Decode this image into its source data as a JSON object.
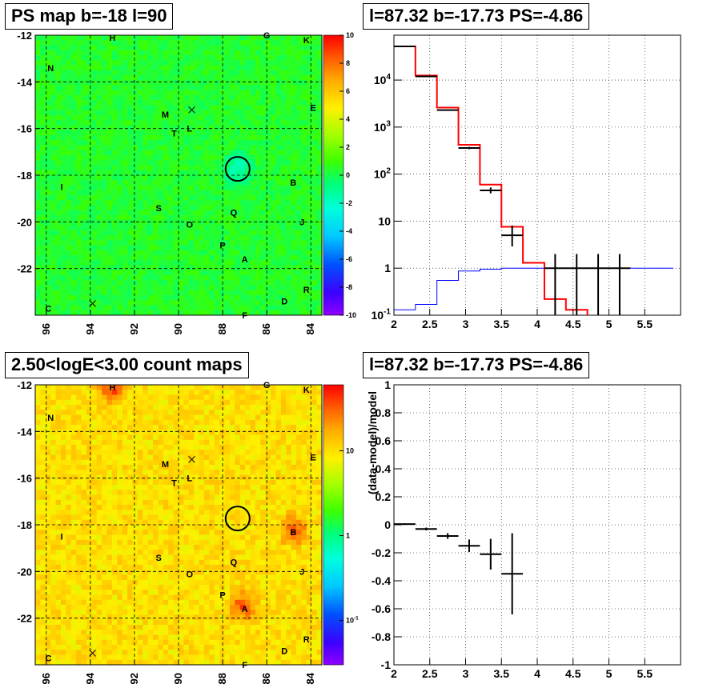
{
  "panels": {
    "ps_map_title": "PS map b=-18 l=90",
    "spectrum_title": "l=87.32 b=-17.73 PS=-4.86",
    "count_map_title": "2.50<logE<3.00 count maps",
    "residual_title": "l=87.32 b=-17.73 PS=-4.86"
  },
  "chart_data": [
    {
      "type": "heatmap",
      "title": "PS map b=-18 l=90",
      "xlabel": "",
      "ylabel": "",
      "x_ticks": [
        "96",
        "94",
        "92",
        "90",
        "88",
        "86",
        "84"
      ],
      "y_ticks": [
        "-12",
        "-14",
        "-16",
        "-18",
        "-20",
        "-22"
      ],
      "xlim": [
        96.5,
        83.5
      ],
      "ylim": [
        -24.0,
        -12.0
      ],
      "colorbar": {
        "min": -10,
        "max": 10,
        "ticks": [
          "-10",
          "-8",
          "-6",
          "-4",
          "-2",
          "0",
          "2",
          "4",
          "6",
          "8",
          "10"
        ]
      },
      "dominant_value": 0.5,
      "source_labels": [
        {
          "text": "H",
          "l": 93.0,
          "b": -12.1
        },
        {
          "text": "G",
          "l": 86.0,
          "b": -12.0
        },
        {
          "text": "K",
          "l": 84.2,
          "b": -12.2
        },
        {
          "text": "N",
          "l": 95.8,
          "b": -13.4
        },
        {
          "text": "E",
          "l": 83.9,
          "b": -15.1
        },
        {
          "text": "M",
          "l": 90.6,
          "b": -15.4
        },
        {
          "text": "L",
          "l": 89.5,
          "b": -16.0
        },
        {
          "text": "T",
          "l": 90.2,
          "b": -16.2
        },
        {
          "text": "B",
          "l": 84.8,
          "b": -18.3
        },
        {
          "text": "I",
          "l": 95.3,
          "b": -18.5
        },
        {
          "text": "S",
          "l": 90.9,
          "b": -19.4
        },
        {
          "text": "Q",
          "l": 87.5,
          "b": -19.6
        },
        {
          "text": "J",
          "l": 84.4,
          "b": -20.0
        },
        {
          "text": "O",
          "l": 89.5,
          "b": -20.1
        },
        {
          "text": "P",
          "l": 88.0,
          "b": -21.0
        },
        {
          "text": "A",
          "l": 87.0,
          "b": -21.6
        },
        {
          "text": "R",
          "l": 84.2,
          "b": -22.9
        },
        {
          "text": "D",
          "l": 85.2,
          "b": -23.4
        },
        {
          "text": "C",
          "l": 95.9,
          "b": -23.7
        },
        {
          "text": "F",
          "l": 87.0,
          "b": -24.0
        }
      ],
      "markers": [
        {
          "type": "x",
          "l": 89.4,
          "b": -15.2
        },
        {
          "type": "x",
          "l": 93.9,
          "b": -23.5
        },
        {
          "type": "circle",
          "l": 87.32,
          "b": -17.73
        }
      ]
    },
    {
      "type": "line",
      "title": "l=87.32 b=-17.73 PS=-4.86",
      "xlabel": "",
      "ylabel": "",
      "x_ticks": [
        "2",
        "2.5",
        "3",
        "3.5",
        "4",
        "4.5",
        "5",
        "5.5"
      ],
      "y_ticks": [
        "10^-1",
        "1",
        "10",
        "10^2",
        "10^3",
        "10^4"
      ],
      "xlim": [
        2.0,
        6.0
      ],
      "ylim": [
        0.1,
        90000
      ],
      "y_scale": "log",
      "grid": true,
      "bin_edges": [
        2.0,
        2.3,
        2.6,
        2.9,
        3.2,
        3.5,
        3.8,
        4.1,
        4.4,
        4.7,
        5.0,
        5.3,
        5.6,
        5.9
      ],
      "series": [
        {
          "color": "#ff0000",
          "style": "step",
          "values": [
            52000,
            12500,
            2600,
            420,
            60,
            7.6,
            1.3,
            0.22,
            0.13,
            0.085,
            0.085,
            0.085,
            0.085
          ]
        },
        {
          "color": "#0000ff",
          "style": "step",
          "values": [
            0.13,
            0.17,
            0.55,
            0.87,
            0.95,
            1.0,
            1.0,
            1.0,
            1.0,
            1.0,
            1.0,
            1.0,
            1.0
          ]
        },
        {
          "color": "#000000",
          "style": "errorbar",
          "points": [
            {
              "x": 2.15,
              "y": 52000,
              "low": 51500,
              "high": 52500
            },
            {
              "x": 2.45,
              "y": 12000,
              "low": 11800,
              "high": 12300
            },
            {
              "x": 2.75,
              "y": 2300,
              "low": 2250,
              "high": 2350
            },
            {
              "x": 3.05,
              "y": 360,
              "low": 340,
              "high": 380
            },
            {
              "x": 3.35,
              "y": 45,
              "low": 39,
              "high": 52
            },
            {
              "x": 3.65,
              "y": 5,
              "low": 2.9,
              "high": 8.1
            },
            {
              "x": 4.25,
              "y": 1.0,
              "low": 0.1,
              "high": 2.0
            },
            {
              "x": 4.55,
              "y": 1.0,
              "low": 0.1,
              "high": 2.0
            },
            {
              "x": 4.85,
              "y": 1.0,
              "low": 0.1,
              "high": 2.0
            },
            {
              "x": 5.15,
              "y": 1.0,
              "low": 0.1,
              "high": 2.0
            }
          ]
        }
      ]
    },
    {
      "type": "heatmap",
      "title": "2.50<logE<3.00 count maps",
      "xlabel": "",
      "ylabel": "",
      "x_ticks": [
        "96",
        "94",
        "92",
        "90",
        "88",
        "86",
        "84"
      ],
      "y_ticks": [
        "-12",
        "-14",
        "-16",
        "-18",
        "-20",
        "-22"
      ],
      "xlim": [
        96.5,
        83.5
      ],
      "ylim": [
        -24.0,
        -12.0
      ],
      "colorbar": {
        "scale": "log",
        "min": 0.03,
        "max": 60,
        "ticks": [
          "10^-1",
          "1",
          "10"
        ]
      },
      "hotspots": [
        {
          "label": "A",
          "l": 87.1,
          "b": -21.5
        },
        {
          "label": "B",
          "l": 84.8,
          "b": -18.2
        },
        {
          "label": "H",
          "l": 93.0,
          "b": -12.2
        }
      ],
      "source_labels": [
        {
          "text": "H",
          "l": 93.0,
          "b": -12.1
        },
        {
          "text": "G",
          "l": 86.0,
          "b": -12.0
        },
        {
          "text": "K",
          "l": 84.2,
          "b": -12.2
        },
        {
          "text": "N",
          "l": 95.8,
          "b": -13.4
        },
        {
          "text": "E",
          "l": 83.9,
          "b": -15.1
        },
        {
          "text": "M",
          "l": 90.6,
          "b": -15.4
        },
        {
          "text": "L",
          "l": 89.5,
          "b": -16.0
        },
        {
          "text": "T",
          "l": 90.2,
          "b": -16.2
        },
        {
          "text": "B",
          "l": 84.8,
          "b": -18.3
        },
        {
          "text": "I",
          "l": 95.3,
          "b": -18.5
        },
        {
          "text": "S",
          "l": 90.9,
          "b": -19.4
        },
        {
          "text": "Q",
          "l": 87.5,
          "b": -19.6
        },
        {
          "text": "J",
          "l": 84.4,
          "b": -20.0
        },
        {
          "text": "O",
          "l": 89.5,
          "b": -20.1
        },
        {
          "text": "P",
          "l": 88.0,
          "b": -21.0
        },
        {
          "text": "A",
          "l": 87.0,
          "b": -21.6
        },
        {
          "text": "R",
          "l": 84.2,
          "b": -22.9
        },
        {
          "text": "D",
          "l": 85.2,
          "b": -23.4
        },
        {
          "text": "C",
          "l": 95.9,
          "b": -23.7
        },
        {
          "text": "F",
          "l": 87.0,
          "b": -24.0
        }
      ],
      "markers": [
        {
          "type": "x",
          "l": 89.4,
          "b": -15.2
        },
        {
          "type": "x",
          "l": 93.9,
          "b": -23.5
        },
        {
          "type": "circle",
          "l": 87.32,
          "b": -17.73
        }
      ]
    },
    {
      "type": "scatter",
      "title": "l=87.32 b=-17.73 PS=-4.86",
      "xlabel": "",
      "ylabel": "(data-model)/model",
      "x_ticks": [
        "2",
        "2.5",
        "3",
        "3.5",
        "4",
        "4.5",
        "5",
        "5.5"
      ],
      "y_ticks": [
        "-1",
        "-0.8",
        "-0.6",
        "-0.4",
        "-0.2",
        "0",
        "0.2",
        "0.4",
        "0.6",
        "0.8",
        "1"
      ],
      "xlim": [
        2.0,
        6.0
      ],
      "ylim": [
        -1.0,
        1.0
      ],
      "grid": true,
      "points": [
        {
          "x": 2.15,
          "y": 0.005,
          "xerr": 0.15,
          "yerr": 0.006
        },
        {
          "x": 2.45,
          "y": -0.03,
          "xerr": 0.15,
          "yerr": 0.01
        },
        {
          "x": 2.75,
          "y": -0.08,
          "xerr": 0.15,
          "yerr": 0.02
        },
        {
          "x": 3.05,
          "y": -0.15,
          "xerr": 0.15,
          "yerr": 0.045
        },
        {
          "x": 3.35,
          "y": -0.21,
          "xerr": 0.15,
          "yerr": 0.11
        },
        {
          "x": 3.65,
          "y": -0.35,
          "xerr": 0.15,
          "yerr": 0.29
        }
      ]
    }
  ]
}
